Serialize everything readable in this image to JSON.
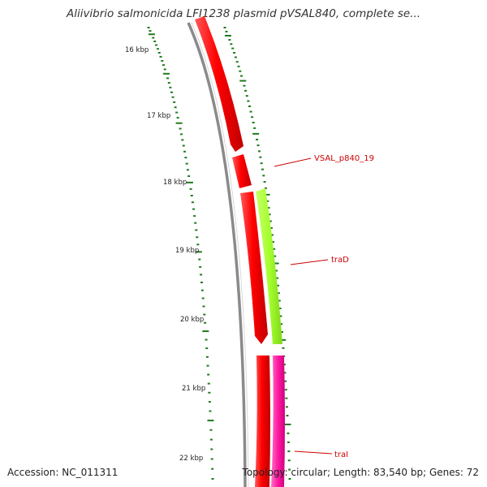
{
  "title": "Aliivibrio salmonicida LFI1238 plasmid pVSAL840, complete se...",
  "footer": {
    "accession": "Accession: NC_011311",
    "topology": "Topology: circular; Length: 83,540 bp; Genes: 72"
  },
  "ticks": [
    {
      "label": "16 kbp"
    },
    {
      "label": "17 kbp"
    },
    {
      "label": "18 kbp"
    },
    {
      "label": "19 kbp"
    },
    {
      "label": "20 kbp"
    },
    {
      "label": "21 kbp"
    },
    {
      "label": "22 kbp"
    }
  ],
  "genes": [
    {
      "label": "VSAL_p840_19"
    },
    {
      "label": "traD"
    },
    {
      "label": "traI"
    }
  ],
  "colors": {
    "backbone": "#8a8a8a",
    "tick": "#1f7a1f",
    "gene_red": "#ff0000",
    "gene_green": "#a6ff2e",
    "gene_pink": "#ff1aa0",
    "label_line": "#cc0000"
  }
}
